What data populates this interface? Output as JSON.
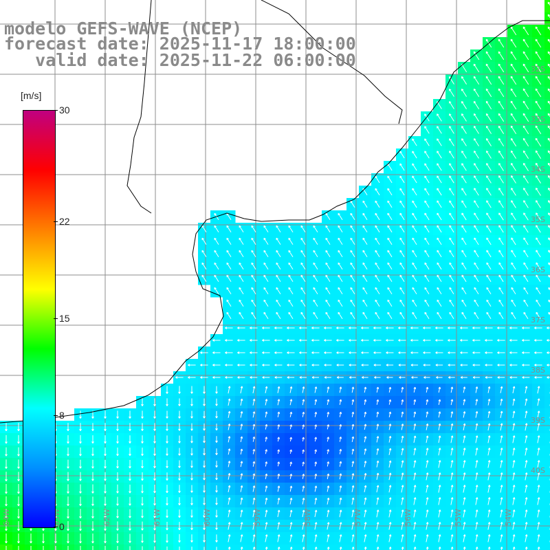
{
  "title": {
    "line1": "modelo GEFS-WAVE (NCEP)",
    "line2": "forecast date: 2025-11-17 18:00:00",
    "line3": "   valid date: 2025-11-22 06:00:00"
  },
  "colorbar": {
    "unit": "[m/s]",
    "ticks": [
      {
        "label": "30",
        "value": 30
      },
      {
        "label": "22",
        "value": 22
      },
      {
        "label": "15",
        "value": 15
      },
      {
        "label": "8",
        "value": 8
      },
      {
        "label": "0",
        "value": 0
      }
    ],
    "range": [
      0,
      30
    ],
    "colors": [
      "#0000ff",
      "#0090ff",
      "#00ffff",
      "#00ff00",
      "#ffff00",
      "#ff8000",
      "#ff0000",
      "#c00080"
    ]
  },
  "map": {
    "latitude_labels": [
      "32S",
      "33S",
      "34S",
      "35S",
      "36S",
      "37S",
      "38S",
      "39S",
      "40S"
    ],
    "longitude_labels": [
      "64W",
      "63W",
      "62W",
      "61W",
      "60W",
      "59W",
      "58W",
      "57W",
      "56W",
      "55W",
      "54W"
    ],
    "gridlines": true,
    "ocean_colors": {
      "calm": "#0022e0",
      "moderate": "#008cff",
      "fresh": "#00ffff",
      "strong": "#00ff60"
    }
  }
}
